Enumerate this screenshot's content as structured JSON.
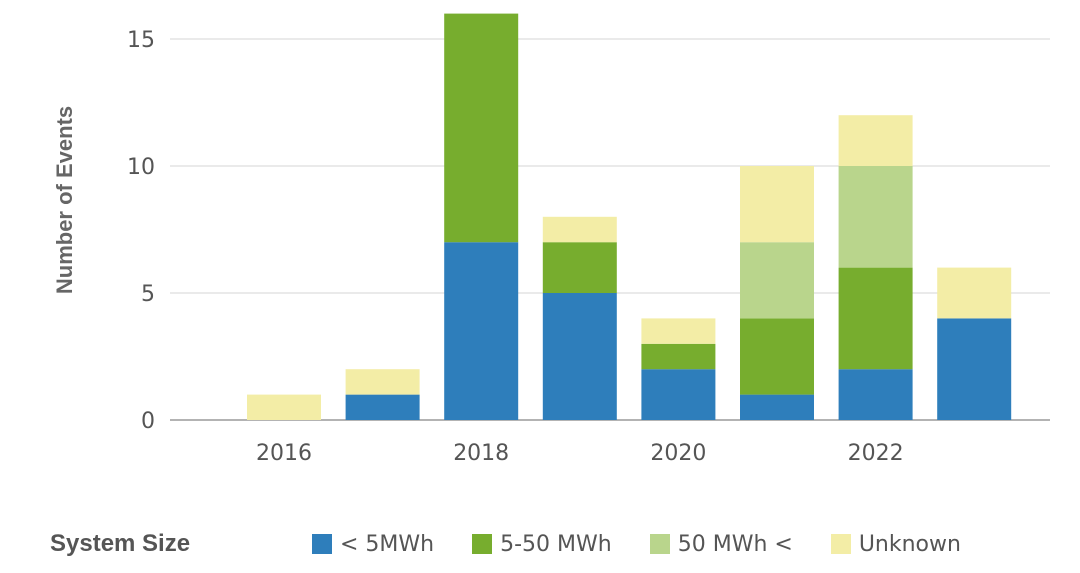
{
  "chart_data": {
    "type": "bar",
    "stacked": true,
    "categories": [
      "2016",
      "2017",
      "2018",
      "2019",
      "2020",
      "2021",
      "2022",
      "2023"
    ],
    "x_tick_labels": [
      "2016",
      "2018",
      "2020",
      "2022"
    ],
    "ylabel": "Number of Events",
    "xlabel": "",
    "ylim": [
      0,
      16
    ],
    "y_ticks": [
      0,
      5,
      10,
      15
    ],
    "grid": "horizontal",
    "legend_title": "System Size",
    "legend_position": "bottom",
    "series": [
      {
        "name": "< 5MWh",
        "color": "#2E7EBB",
        "values": [
          0,
          1,
          7,
          5,
          2,
          1,
          2,
          4
        ]
      },
      {
        "name": "5-50 MWh",
        "color": "#77AD2E",
        "values": [
          0,
          0,
          9,
          2,
          1,
          3,
          4,
          0
        ]
      },
      {
        "name": "50 MWh <",
        "color": "#B9D58C",
        "values": [
          0,
          0,
          0,
          0,
          0,
          3,
          4,
          0
        ]
      },
      {
        "name": "Unknown",
        "color": "#F3EDA6",
        "values": [
          1,
          1,
          0,
          1,
          1,
          3,
          2,
          2
        ]
      }
    ]
  }
}
